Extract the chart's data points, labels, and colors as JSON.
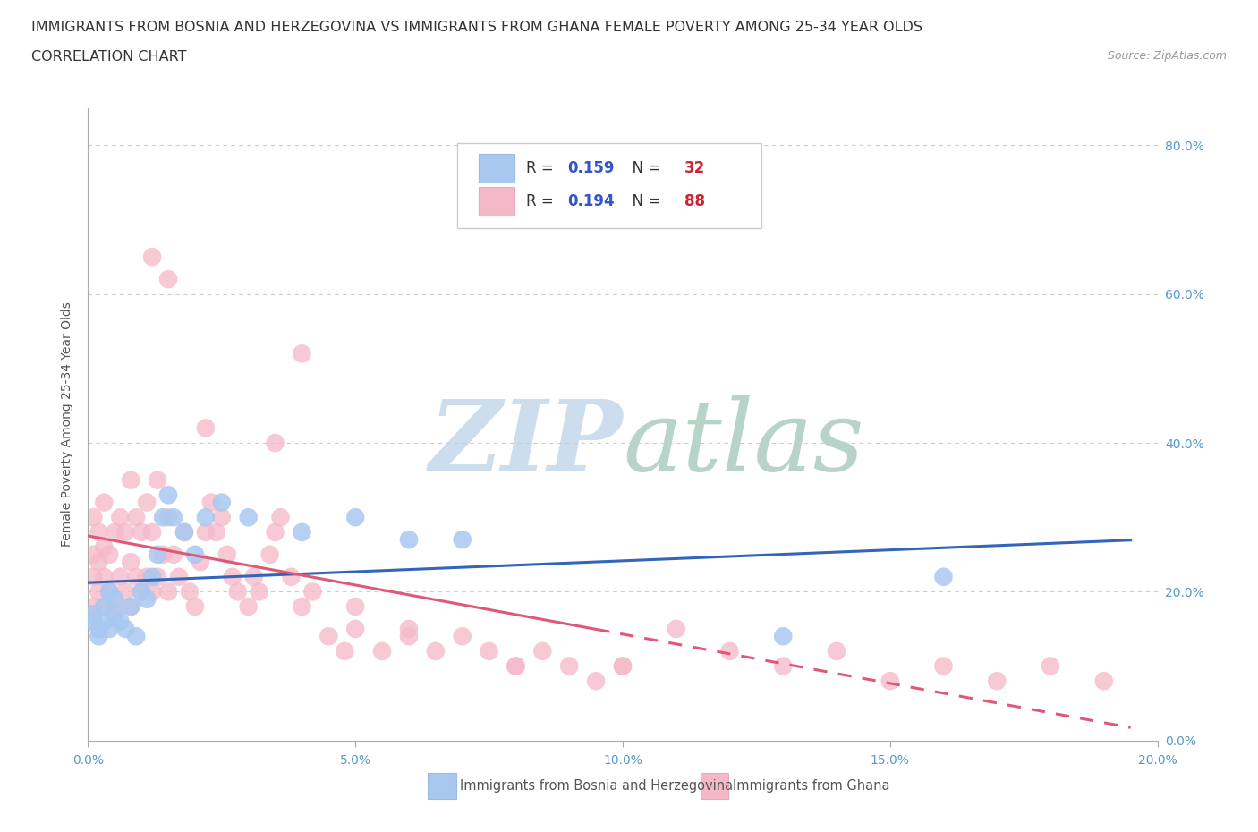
{
  "title_line1": "IMMIGRANTS FROM BOSNIA AND HERZEGOVINA VS IMMIGRANTS FROM GHANA FEMALE POVERTY AMONG 25-34 YEAR OLDS",
  "title_line2": "CORRELATION CHART",
  "source_text": "Source: ZipAtlas.com",
  "ylabel": "Female Poverty Among 25-34 Year Olds",
  "xlim": [
    0.0,
    0.2
  ],
  "ylim": [
    0.0,
    0.85
  ],
  "xticks": [
    0.0,
    0.05,
    0.1,
    0.15,
    0.2
  ],
  "yticks": [
    0.0,
    0.2,
    0.4,
    0.6,
    0.8
  ],
  "blue_R": 0.159,
  "blue_N": 32,
  "pink_R": 0.194,
  "pink_N": 88,
  "blue_color": "#a8c8f0",
  "pink_color": "#f5b8c8",
  "blue_line_color": "#3366bb",
  "pink_line_color": "#e05878",
  "blue_label": "Immigrants from Bosnia and Herzegovina",
  "pink_label": "Immigrants from Ghana",
  "watermark": "ZIPatlas",
  "watermark_color": "#ccdded",
  "legend_R_color": "#3355cc",
  "legend_N_color": "#cc2233",
  "title_fontsize": 11.5,
  "tick_fontsize": 10,
  "right_tick_color": "#5599cc",
  "grid_color": "#cccccc",
  "axis_color": "#aaaaaa",
  "blue_x": [
    0.001,
    0.001,
    0.002,
    0.002,
    0.003,
    0.003,
    0.004,
    0.004,
    0.005,
    0.005,
    0.006,
    0.007,
    0.008,
    0.009,
    0.01,
    0.011,
    0.012,
    0.013,
    0.014,
    0.015,
    0.016,
    0.018,
    0.02,
    0.022,
    0.025,
    0.03,
    0.04,
    0.05,
    0.06,
    0.07,
    0.13,
    0.16
  ],
  "blue_y": [
    0.16,
    0.17,
    0.14,
    0.15,
    0.16,
    0.18,
    0.15,
    0.2,
    0.17,
    0.19,
    0.16,
    0.15,
    0.18,
    0.14,
    0.2,
    0.19,
    0.22,
    0.25,
    0.3,
    0.33,
    0.3,
    0.28,
    0.25,
    0.3,
    0.32,
    0.3,
    0.28,
    0.3,
    0.27,
    0.27,
    0.14,
    0.22
  ],
  "pink_x": [
    0.001,
    0.001,
    0.001,
    0.001,
    0.002,
    0.002,
    0.002,
    0.003,
    0.003,
    0.003,
    0.003,
    0.004,
    0.004,
    0.005,
    0.005,
    0.006,
    0.006,
    0.007,
    0.007,
    0.008,
    0.008,
    0.008,
    0.009,
    0.009,
    0.01,
    0.01,
    0.011,
    0.011,
    0.012,
    0.012,
    0.013,
    0.013,
    0.014,
    0.015,
    0.015,
    0.016,
    0.017,
    0.018,
    0.019,
    0.02,
    0.021,
    0.022,
    0.023,
    0.024,
    0.025,
    0.026,
    0.027,
    0.028,
    0.03,
    0.031,
    0.032,
    0.034,
    0.035,
    0.036,
    0.038,
    0.04,
    0.042,
    0.045,
    0.048,
    0.05,
    0.055,
    0.06,
    0.065,
    0.07,
    0.075,
    0.08,
    0.085,
    0.09,
    0.095,
    0.1,
    0.012,
    0.015,
    0.022,
    0.035,
    0.04,
    0.05,
    0.06,
    0.08,
    0.1,
    0.11,
    0.12,
    0.13,
    0.14,
    0.15,
    0.16,
    0.17,
    0.18,
    0.19
  ],
  "pink_y": [
    0.18,
    0.22,
    0.25,
    0.3,
    0.2,
    0.24,
    0.28,
    0.18,
    0.22,
    0.26,
    0.32,
    0.2,
    0.25,
    0.18,
    0.28,
    0.22,
    0.3,
    0.2,
    0.28,
    0.18,
    0.24,
    0.35,
    0.22,
    0.3,
    0.2,
    0.28,
    0.22,
    0.32,
    0.2,
    0.28,
    0.22,
    0.35,
    0.25,
    0.2,
    0.3,
    0.25,
    0.22,
    0.28,
    0.2,
    0.18,
    0.24,
    0.28,
    0.32,
    0.28,
    0.3,
    0.25,
    0.22,
    0.2,
    0.18,
    0.22,
    0.2,
    0.25,
    0.28,
    0.3,
    0.22,
    0.18,
    0.2,
    0.14,
    0.12,
    0.15,
    0.12,
    0.15,
    0.12,
    0.14,
    0.12,
    0.1,
    0.12,
    0.1,
    0.08,
    0.1,
    0.65,
    0.62,
    0.42,
    0.4,
    0.52,
    0.18,
    0.14,
    0.1,
    0.1,
    0.15,
    0.12,
    0.1,
    0.12,
    0.08,
    0.1,
    0.08,
    0.1,
    0.08
  ]
}
